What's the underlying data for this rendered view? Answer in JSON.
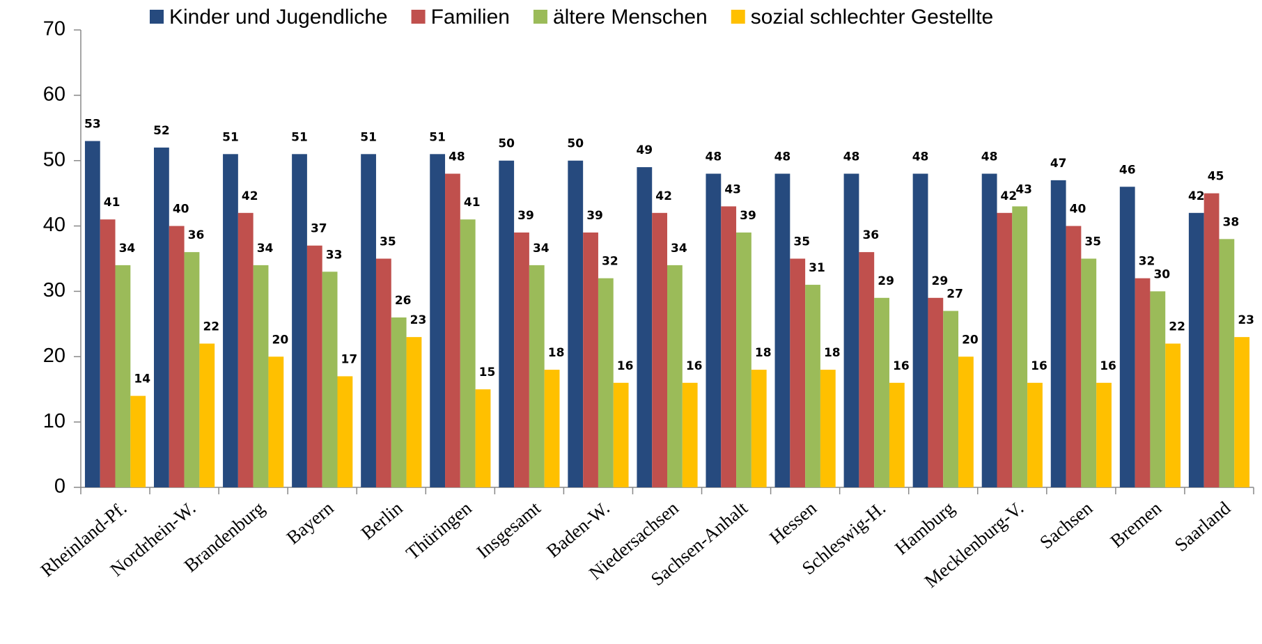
{
  "chart_data": {
    "type": "bar",
    "categories": [
      "Rheinland-Pf.",
      "Nordrhein-W.",
      "Brandenburg",
      "Bayern",
      "Berlin",
      "Thüringen",
      "Insgesamt",
      "Baden-W.",
      "Niedersachsen",
      "Sachsen-Anhalt",
      "Hessen",
      "Schleswig-H.",
      "Hamburg",
      "Mecklenburg-V.",
      "Sachsen",
      "Bremen",
      "Saarland"
    ],
    "series": [
      {
        "name": "Kinder und Jugendliche",
        "color": "#264a7e",
        "values": [
          53,
          52,
          51,
          51,
          51,
          51,
          50,
          50,
          49,
          48,
          48,
          48,
          48,
          48,
          47,
          46,
          42
        ]
      },
      {
        "name": "Familien",
        "color": "#c0504d",
        "values": [
          41,
          40,
          42,
          37,
          35,
          48,
          39,
          39,
          42,
          43,
          35,
          36,
          29,
          42,
          40,
          32,
          45
        ]
      },
      {
        "name": "ältere Menschen",
        "color": "#9bbb59",
        "values": [
          34,
          36,
          34,
          33,
          26,
          41,
          34,
          32,
          34,
          39,
          31,
          29,
          27,
          43,
          35,
          30,
          38
        ]
      },
      {
        "name": "sozial schlechter Gestellte",
        "color": "#ffc000",
        "values": [
          14,
          22,
          20,
          17,
          23,
          15,
          18,
          16,
          16,
          18,
          18,
          16,
          20,
          16,
          16,
          22,
          23
        ]
      }
    ],
    "ylim": [
      0,
      70
    ],
    "yticks": [
      0,
      10,
      20,
      30,
      40,
      50,
      60,
      70
    ],
    "grid": false,
    "legend": "top"
  }
}
